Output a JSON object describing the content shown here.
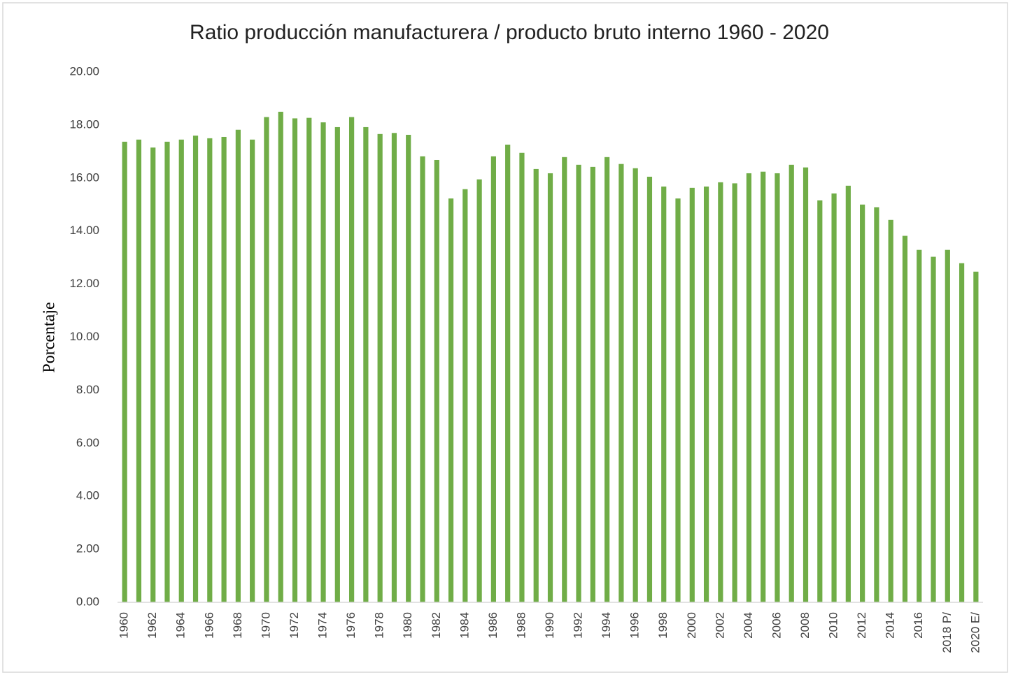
{
  "chart_data": {
    "type": "bar",
    "title": "Ratio producción manufacturera / producto bruto interno 1960 - 2020",
    "y_label": "Porcentaje",
    "categories": [
      "1960",
      null,
      "1962",
      null,
      "1964",
      null,
      "1966",
      null,
      "1968",
      null,
      "1970",
      null,
      "1972",
      null,
      "1974",
      null,
      "1976",
      null,
      "1978",
      null,
      "1980",
      null,
      "1982",
      null,
      "1984",
      null,
      "1986",
      null,
      "1988",
      null,
      "1990",
      null,
      "1992",
      null,
      "1994",
      null,
      "1996",
      null,
      "1998",
      null,
      "2000",
      null,
      "2002",
      null,
      "2004",
      null,
      "2006",
      null,
      "2008",
      null,
      "2010",
      null,
      "2012",
      null,
      "2014",
      null,
      "2016",
      null,
      "2018 P/",
      null,
      "2020 E/"
    ],
    "values": [
      17.37,
      17.45,
      17.15,
      17.37,
      17.45,
      17.6,
      17.5,
      17.55,
      17.82,
      17.45,
      18.3,
      18.5,
      18.25,
      18.27,
      18.1,
      17.92,
      18.3,
      17.92,
      17.66,
      17.7,
      17.63,
      16.82,
      16.68,
      15.23,
      15.58,
      15.95,
      16.82,
      17.26,
      16.95,
      16.34,
      16.18,
      16.79,
      16.5,
      16.42,
      16.79,
      16.53,
      16.37,
      16.05,
      15.68,
      15.23,
      15.63,
      15.68,
      15.84,
      15.8,
      16.18,
      16.24,
      16.18,
      16.5,
      16.4,
      15.16,
      15.42,
      15.71,
      15.0,
      14.9,
      14.42,
      13.82,
      13.29,
      13.03,
      13.29,
      12.79,
      12.47
    ],
    "color": "#70ad47",
    "ylim": [
      0,
      20
    ],
    "yticks": [
      {
        "value": 0,
        "label": "0.00"
      },
      {
        "value": 2,
        "label": "2.00"
      },
      {
        "value": 4,
        "label": "4.00"
      },
      {
        "value": 6,
        "label": "6.00"
      },
      {
        "value": 8,
        "label": "8.00"
      },
      {
        "value": 10,
        "label": "10.00"
      },
      {
        "value": 12,
        "label": "12.00"
      },
      {
        "value": 14,
        "label": "14.00"
      },
      {
        "value": 16,
        "label": "16.00"
      },
      {
        "value": 18,
        "label": "18.00"
      },
      {
        "value": 20,
        "label": "20.00"
      }
    ],
    "grid": false
  }
}
